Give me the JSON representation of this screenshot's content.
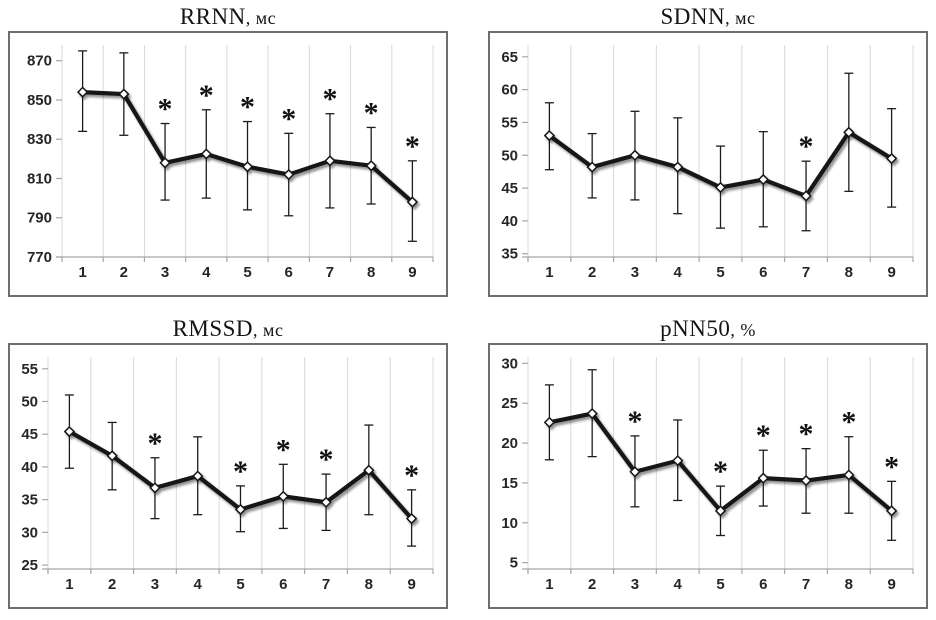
{
  "page": {
    "background": "#ffffff"
  },
  "styles": {
    "series_line_color": "#141414",
    "marker_fill": "#ffffff",
    "marker_stroke": "#141414",
    "error_bar_color": "#1c1c1c",
    "gridline_color": "#d9d9d9",
    "axis_color": "#a6a6a6",
    "tick_label_color": "#262626",
    "frame_border_color": "#6e6e6e",
    "shadow_color": "#8c8c8c"
  },
  "chart_data": [
    {
      "type": "line",
      "title": "RRNN, мс",
      "title_main": "RRNN",
      "title_unit": ", мс",
      "categories": [
        "1",
        "2",
        "3",
        "4",
        "5",
        "6",
        "7",
        "8",
        "9"
      ],
      "values": [
        854,
        853,
        818,
        822.5,
        816,
        812,
        819,
        816.5,
        798
      ],
      "error_high": [
        875,
        874,
        838,
        845,
        839,
        833,
        843,
        836,
        819
      ],
      "error_low": [
        834,
        832,
        799,
        800,
        794,
        791,
        795,
        797,
        778
      ],
      "significant_points": [
        3,
        4,
        5,
        6,
        7,
        8,
        9
      ],
      "significance_symbol": "*",
      "yticks": [
        770,
        790,
        810,
        830,
        850,
        870
      ],
      "ylim": [
        770,
        878
      ],
      "grid": "vertical-only",
      "legend": "none",
      "marker": "open-diamond"
    },
    {
      "type": "line",
      "title": "SDNN, мс",
      "title_main": "SDNN",
      "title_unit": ", мс",
      "categories": [
        "1",
        "2",
        "3",
        "4",
        "5",
        "6",
        "7",
        "8",
        "9"
      ],
      "values": [
        53,
        48.2,
        50,
        48.2,
        45.1,
        46.3,
        43.8,
        53.5,
        49.5
      ],
      "error_high": [
        58,
        53.3,
        56.7,
        55.7,
        51.4,
        53.6,
        49.1,
        62.5,
        57.1
      ],
      "error_low": [
        47.8,
        43.5,
        43.2,
        41.1,
        38.9,
        39.1,
        38.5,
        44.5,
        42.1
      ],
      "significant_points": [
        7
      ],
      "significance_symbol": "*",
      "yticks": [
        35,
        40,
        45,
        50,
        55,
        60,
        65
      ],
      "ylim": [
        34.5,
        66.8
      ],
      "grid": "vertical-only",
      "legend": "none",
      "marker": "open-diamond"
    },
    {
      "type": "line",
      "title": "RMSSD, мс",
      "title_main": "RMSSD",
      "title_unit": ", мс",
      "categories": [
        "1",
        "2",
        "3",
        "4",
        "5",
        "6",
        "7",
        "8",
        "9"
      ],
      "values": [
        45.4,
        41.7,
        36.8,
        38.6,
        33.5,
        35.5,
        34.6,
        39.5,
        32.1
      ],
      "error_high": [
        51,
        46.8,
        41.4,
        44.6,
        37.1,
        40.4,
        38.9,
        46.4,
        36.5
      ],
      "error_low": [
        39.8,
        36.5,
        32.1,
        32.7,
        30.1,
        30.6,
        30.3,
        32.7,
        27.9
      ],
      "significant_points": [
        3,
        5,
        6,
        7,
        9
      ],
      "significance_symbol": "*",
      "yticks": [
        25,
        30,
        35,
        40,
        45,
        50,
        55
      ],
      "ylim": [
        24.4,
        56.8
      ],
      "grid": "vertical-only",
      "legend": "none",
      "marker": "open-diamond"
    },
    {
      "type": "line",
      "title": "pNN50, %",
      "title_main": "pNN50",
      "title_unit": ", %",
      "categories": [
        "1",
        "2",
        "3",
        "4",
        "5",
        "6",
        "7",
        "8",
        "9"
      ],
      "values": [
        22.6,
        23.7,
        16.4,
        17.8,
        11.5,
        15.6,
        15.3,
        16.0,
        11.5
      ],
      "error_high": [
        27.3,
        29.2,
        20.9,
        22.9,
        14.6,
        19.1,
        19.3,
        20.8,
        15.2
      ],
      "error_low": [
        17.9,
        18.3,
        12.0,
        12.8,
        8.4,
        12.1,
        11.2,
        11.2,
        7.8
      ],
      "significant_points": [
        3,
        5,
        6,
        7,
        8,
        9
      ],
      "significance_symbol": "*",
      "yticks": [
        5,
        10,
        15,
        20,
        25,
        30
      ],
      "ylim": [
        4.2,
        30.8
      ],
      "grid": "vertical-only",
      "legend": "none",
      "marker": "open-diamond"
    }
  ]
}
